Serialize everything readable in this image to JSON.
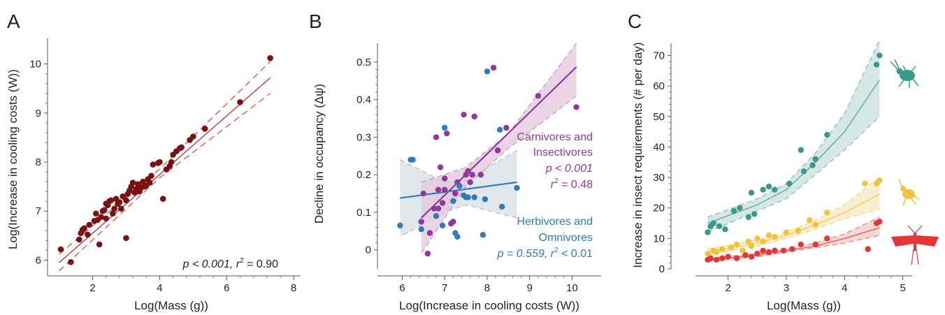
{
  "chart_data": [
    {
      "panel": "A",
      "type": "scatter",
      "xlabel": "Log(Mass (g))",
      "ylabel": "Log(Increase in cooling costs (W))",
      "xlim": [
        0.8,
        8.1
      ],
      "ylim": [
        5.75,
        10.45
      ],
      "xticks": [
        2,
        4,
        6,
        8
      ],
      "yticks": [
        6,
        7,
        8,
        9,
        10
      ],
      "annotation": {
        "p": "p < 0.001, ",
        "r": "r",
        "sup": "2",
        "val": " = 0.90"
      },
      "colors": {
        "points": "#7a1010",
        "line": "#b5302b"
      },
      "fit": {
        "x1": 1.0,
        "y1": 5.95,
        "x2": 7.3,
        "y2": 9.72
      },
      "ci": {
        "hi": [
          [
            1.0,
            6.12
          ],
          [
            4.0,
            7.86
          ],
          [
            7.3,
            10.05
          ]
        ],
        "lo": [
          [
            1.0,
            5.78
          ],
          [
            4.0,
            7.68
          ],
          [
            7.3,
            9.4
          ]
        ]
      },
      "x": [
        1.05,
        1.35,
        1.6,
        1.65,
        1.7,
        1.75,
        1.85,
        1.9,
        2.05,
        2.1,
        2.15,
        2.2,
        2.25,
        2.3,
        2.35,
        2.4,
        2.4,
        2.45,
        2.5,
        2.55,
        2.6,
        2.65,
        2.7,
        2.75,
        2.8,
        2.85,
        2.9,
        3.0,
        3.05,
        3.1,
        3.15,
        3.2,
        3.25,
        3.3,
        3.35,
        3.4,
        3.45,
        3.5,
        3.55,
        3.6,
        3.65,
        3.7,
        3.75,
        3.8,
        4.0,
        4.1,
        4.2,
        4.3,
        4.35,
        4.4,
        4.5,
        4.6,
        4.65,
        4.9,
        5.0,
        5.35,
        6.4,
        7.3,
        3.95,
        3.0
      ],
      "y": [
        6.22,
        5.96,
        6.42,
        6.55,
        6.62,
        6.65,
        6.52,
        6.72,
        6.8,
        6.95,
        6.82,
        6.32,
        6.88,
        7.0,
        7.02,
        7.15,
        6.85,
        7.12,
        7.2,
        7.22,
        6.95,
        7.05,
        7.25,
        7.15,
        7.18,
        7.05,
        7.3,
        7.22,
        7.35,
        7.42,
        7.5,
        7.58,
        7.38,
        7.45,
        7.55,
        7.4,
        7.48,
        7.6,
        7.5,
        7.52,
        7.65,
        7.58,
        7.72,
        7.95,
        8.0,
        7.25,
        7.85,
        7.92,
        8.0,
        8.15,
        8.22,
        8.28,
        8.3,
        8.45,
        8.52,
        8.68,
        9.22,
        10.12,
        7.98,
        6.45
      ]
    },
    {
      "panel": "B",
      "type": "scatter",
      "xlabel": "Log(Increase in cooling costs (W))",
      "ylabel": "Decline in occupancy (Δψ)",
      "xlim": [
        5.5,
        10.6
      ],
      "ylim": [
        -0.06,
        0.55
      ],
      "xticks": [
        6,
        7,
        8,
        9,
        10
      ],
      "yticks": [
        0,
        0.1,
        0.2,
        0.3,
        0.4,
        0.5
      ],
      "colors": {
        "carnivores": "#8e3a9d",
        "herbivores": "#2f7cb6",
        "carniv_fill": "#e3c7dc",
        "herb_fill": "#d6e0e6"
      },
      "series": [
        {
          "name": "Carnivores and Insectivores",
          "stat1": "p < 0.001",
          "stat2": "r",
          "stat2sup": "2",
          "stat2val": " = 0.48",
          "x": [
            6.45,
            6.5,
            6.6,
            6.65,
            6.75,
            6.8,
            6.85,
            6.9,
            6.95,
            7.0,
            7.05,
            7.15,
            7.2,
            7.25,
            7.3,
            7.45,
            7.5,
            7.55,
            7.6,
            7.7,
            7.85,
            8.15,
            8.25,
            8.45,
            9.2,
            10.1,
            6.85,
            7.0,
            7.65
          ],
          "y": [
            0.075,
            0.15,
            -0.01,
            0.045,
            0.11,
            0.3,
            0.16,
            0.22,
            0.125,
            0.16,
            0.31,
            0.07,
            0.075,
            0.15,
            0.18,
            0.36,
            0.2,
            0.21,
            0.18,
            0.355,
            0.2,
            0.485,
            0.265,
            0.325,
            0.41,
            0.38,
            0.11,
            0.19,
            0.2
          ]
        },
        {
          "name": "Herbivores and Omnivores",
          "stat": "p = 0.559, ",
          "stat2": "r",
          "stat2sup": "2",
          "stat2val": " < 0.01",
          "x": [
            5.95,
            6.2,
            6.25,
            6.45,
            6.8,
            6.95,
            7.0,
            7.2,
            7.25,
            7.3,
            7.35,
            7.45,
            7.5,
            7.55,
            7.7,
            7.9,
            7.95,
            8.0,
            8.3,
            8.35,
            8.7
          ],
          "y": [
            0.065,
            0.24,
            0.24,
            0.055,
            0.09,
            0.065,
            0.325,
            0.13,
            0.045,
            0.035,
            0.17,
            0.145,
            0.14,
            0.14,
            0.14,
            0.04,
            0.135,
            0.475,
            0.32,
            0.115,
            0.165
          ]
        }
      ],
      "fits": [
        {
          "series": "carnivores",
          "x1": 6.45,
          "y1": 0.085,
          "x2": 10.1,
          "y2": 0.487
        },
        {
          "series": "herbivores",
          "x1": 5.95,
          "y1": 0.138,
          "x2": 8.7,
          "y2": 0.18
        }
      ],
      "ci": [
        {
          "series": "carnivores",
          "hi": [
            [
              6.45,
              0.18
            ],
            [
              7.5,
              0.22
            ],
            [
              8.5,
              0.31
            ],
            [
              10.1,
              0.55
            ]
          ],
          "lo": [
            [
              10.1,
              0.41
            ],
            [
              8.5,
              0.27
            ],
            [
              7.5,
              0.17
            ],
            [
              6.45,
              -0.01
            ]
          ]
        },
        {
          "series": "herbivores",
          "hi": [
            [
              5.95,
              0.24
            ],
            [
              7.0,
              0.18
            ],
            [
              7.5,
              0.185
            ],
            [
              8.7,
              0.265
            ]
          ],
          "lo": [
            [
              8.7,
              0.085
            ],
            [
              7.5,
              0.12
            ],
            [
              7.0,
              0.1
            ],
            [
              5.95,
              0.035
            ]
          ]
        }
      ]
    },
    {
      "panel": "C",
      "type": "scatter",
      "xlabel": "Log(Mass (g))",
      "ylabel": "Increase in insect requirements (# per day)",
      "xlim": [
        1.5,
        5.1
      ],
      "ylim": [
        0,
        74
      ],
      "xticks": [
        2,
        3,
        4,
        5
      ],
      "yticks": [
        0,
        10,
        20,
        30,
        40,
        50,
        60,
        70
      ],
      "colors": {
        "teal": "#3a9a8a",
        "yellow": "#efc43a",
        "red": "#e53535",
        "teal_fill": "#cfe4df",
        "yellow_fill": "#f7ebc8",
        "red_fill": "#f6d0cb"
      },
      "icons": [
        "beetle-icon",
        "bee-icon",
        "moth-icon"
      ],
      "series": [
        {
          "name": "teal",
          "x": [
            1.65,
            1.7,
            1.75,
            1.85,
            1.95,
            2.1,
            2.2,
            2.35,
            2.4,
            2.45,
            2.6,
            2.7,
            2.8,
            3.05,
            3.25,
            3.3,
            3.45,
            3.5,
            3.7,
            4.6,
            4.55
          ],
          "y": [
            12,
            14,
            15,
            14,
            13,
            19,
            20,
            17,
            25,
            18,
            26,
            27,
            26,
            28,
            39,
            32,
            34,
            36,
            44,
            70,
            67
          ],
          "fit": [
            [
              1.65,
              15
            ],
            [
              2.5,
              21
            ],
            [
              3.0,
              26
            ],
            [
              3.5,
              35
            ],
            [
              4.0,
              45
            ],
            [
              4.6,
              62
            ]
          ],
          "ci_hi": [
            [
              1.65,
              17
            ],
            [
              2.5,
              23
            ],
            [
              3.0,
              28
            ],
            [
              3.5,
              38
            ],
            [
              4.0,
              51
            ],
            [
              4.6,
              75
            ]
          ],
          "ci_lo": [
            [
              1.65,
              12
            ],
            [
              2.5,
              19
            ],
            [
              3.0,
              23
            ],
            [
              3.5,
              31
            ],
            [
              4.0,
              39
            ],
            [
              4.6,
              50
            ]
          ]
        },
        {
          "name": "yellow",
          "x": [
            1.65,
            1.75,
            1.8,
            1.9,
            2.05,
            2.15,
            2.25,
            2.35,
            2.4,
            2.5,
            2.6,
            2.7,
            2.8,
            3.0,
            3.2,
            3.4,
            3.5,
            3.7,
            4.35,
            4.55,
            4.6
          ],
          "y": [
            5,
            6,
            5.5,
            6.5,
            7,
            8,
            6,
            9,
            7.5,
            10,
            9,
            11,
            10.5,
            12,
            12.5,
            16,
            14.5,
            18.5,
            28,
            28,
            29
          ],
          "fit": [
            [
              1.65,
              5.5
            ],
            [
              2.5,
              8.5
            ],
            [
              3.0,
              11
            ],
            [
              3.5,
              14.5
            ],
            [
              4.0,
              18.5
            ],
            [
              4.6,
              24.5
            ]
          ],
          "ci_hi": [
            [
              1.65,
              6.5
            ],
            [
              2.5,
              9.5
            ],
            [
              3.0,
              12
            ],
            [
              3.5,
              16
            ],
            [
              4.0,
              21
            ],
            [
              4.6,
              30
            ]
          ],
          "ci_lo": [
            [
              1.65,
              4.5
            ],
            [
              2.5,
              7.5
            ],
            [
              3.0,
              10
            ],
            [
              3.5,
              13
            ],
            [
              4.0,
              16.5
            ],
            [
              4.6,
              19.5
            ]
          ]
        },
        {
          "name": "red",
          "x": [
            1.65,
            1.7,
            1.8,
            1.9,
            2.0,
            2.15,
            2.3,
            2.4,
            2.5,
            2.6,
            2.7,
            2.8,
            2.95,
            3.1,
            3.25,
            3.5,
            3.7,
            4.4,
            4.55,
            4.6
          ],
          "y": [
            3,
            3.5,
            3,
            3.5,
            4,
            3.5,
            4.5,
            4,
            5,
            6,
            5.5,
            6,
            6,
            6.5,
            8,
            8,
            10,
            6.5,
            15,
            15.5
          ],
          "fit": [
            [
              1.65,
              3
            ],
            [
              2.5,
              4.5
            ],
            [
              3.0,
              6
            ],
            [
              3.5,
              7.5
            ],
            [
              4.0,
              10
            ],
            [
              4.6,
              13.5
            ]
          ],
          "ci_hi": [
            [
              1.65,
              3.5
            ],
            [
              2.5,
              5
            ],
            [
              3.0,
              6.5
            ],
            [
              3.5,
              8.5
            ],
            [
              4.0,
              11.5
            ],
            [
              4.6,
              17
            ]
          ],
          "ci_lo": [
            [
              1.65,
              2.5
            ],
            [
              2.5,
              4
            ],
            [
              3.0,
              5.5
            ],
            [
              3.5,
              7
            ],
            [
              4.0,
              8.5
            ],
            [
              4.6,
              11
            ]
          ]
        }
      ]
    }
  ]
}
